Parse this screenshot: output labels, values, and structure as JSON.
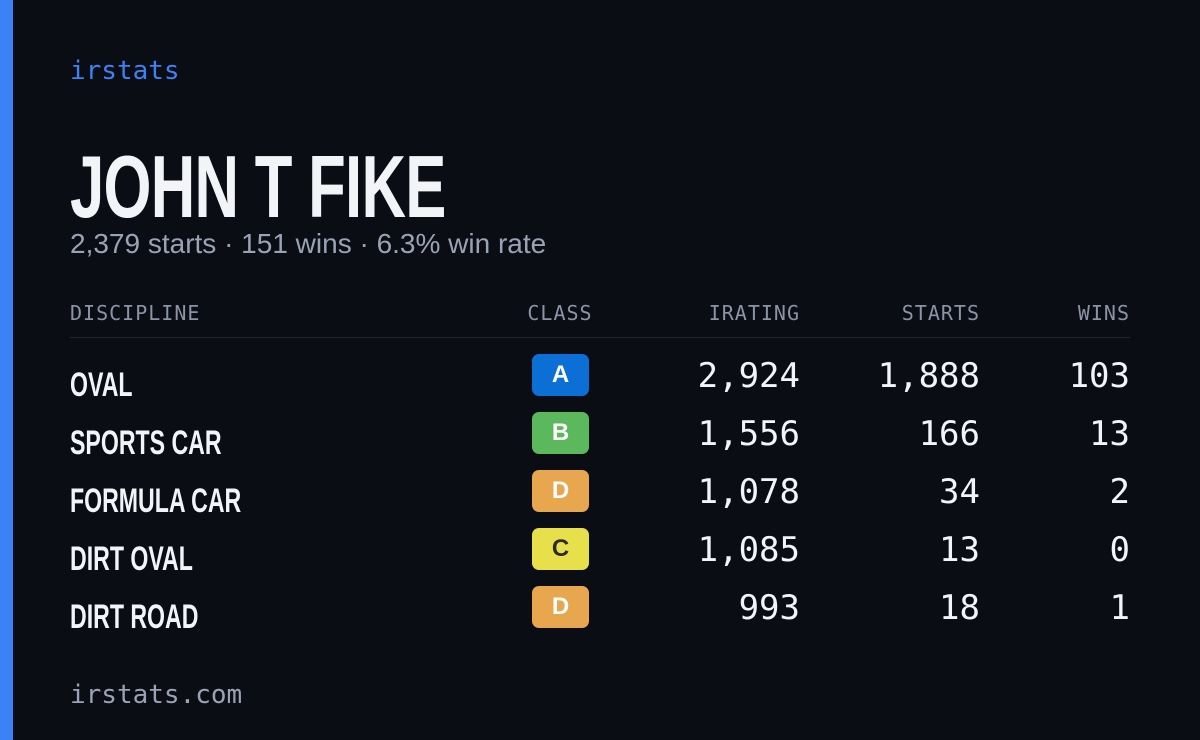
{
  "brand": "irstats",
  "driver": {
    "name": "JOHN T FIKE",
    "summary": "2,379 starts · 151 wins · 6.3% win rate"
  },
  "table": {
    "headers": [
      "DISCIPLINE",
      "CLASS",
      "IRATING",
      "STARTS",
      "WINS"
    ],
    "rows": [
      {
        "discipline": "OVAL",
        "class": "A",
        "class_color": "#0b6fd6",
        "irating": "2,924",
        "starts": "1,888",
        "wins": "103"
      },
      {
        "discipline": "SPORTS CAR",
        "class": "B",
        "class_color": "#5cb85c",
        "irating": "1,556",
        "starts": "166",
        "wins": "13"
      },
      {
        "discipline": "FORMULA CAR",
        "class": "D",
        "class_color": "#e8a64e",
        "irating": "1,078",
        "starts": "34",
        "wins": "2"
      },
      {
        "discipline": "DIRT OVAL",
        "class": "C",
        "class_color": "#e8e04a",
        "irating": "1,085",
        "starts": "13",
        "wins": "0"
      },
      {
        "discipline": "DIRT ROAD",
        "class": "D",
        "class_color": "#e8a64e",
        "irating": "993",
        "starts": "18",
        "wins": "1"
      }
    ]
  },
  "footer": "irstats.com"
}
